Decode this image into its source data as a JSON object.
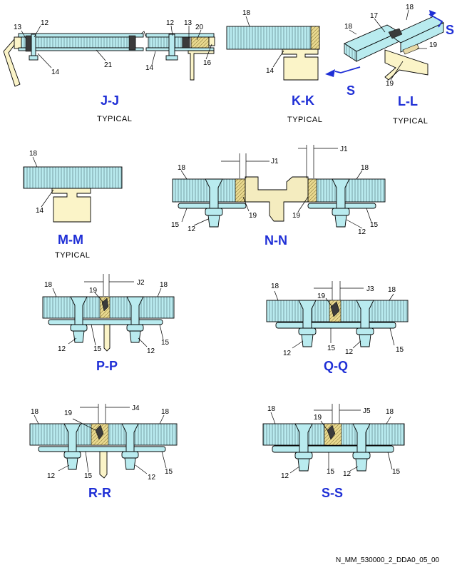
{
  "sections": {
    "jj": {
      "title": "J-J",
      "note": "TYPICAL"
    },
    "kk": {
      "title": "K-K",
      "note": "TYPICAL"
    },
    "ll": {
      "title": "L-L",
      "note": "TYPICAL"
    },
    "mm": {
      "title": "M-M",
      "note": "TYPICAL"
    },
    "nn": {
      "title": "N-N"
    },
    "pp": {
      "title": "P-P"
    },
    "qq": {
      "title": "Q-Q"
    },
    "rr": {
      "title": "R-R"
    },
    "ss": {
      "title": "S-S"
    }
  },
  "callouts": {
    "n12": "12",
    "n13": "13",
    "n14": "14",
    "n15": "15",
    "n16": "16",
    "n17": "17",
    "n18": "18",
    "n19": "19",
    "n20": "20",
    "n21": "21"
  },
  "dims": {
    "j1": "J1",
    "j2": "J2",
    "j3": "J3",
    "j4": "J4",
    "j5": "J5"
  },
  "view_marker": "S",
  "figure_ref": "N_MM_530000_2_DDA0_05_00",
  "colors": {
    "title": "#1f2fd6",
    "panel": "#b9ebef",
    "beam": "#fbf4c8",
    "seal": "#3b3b3b"
  }
}
